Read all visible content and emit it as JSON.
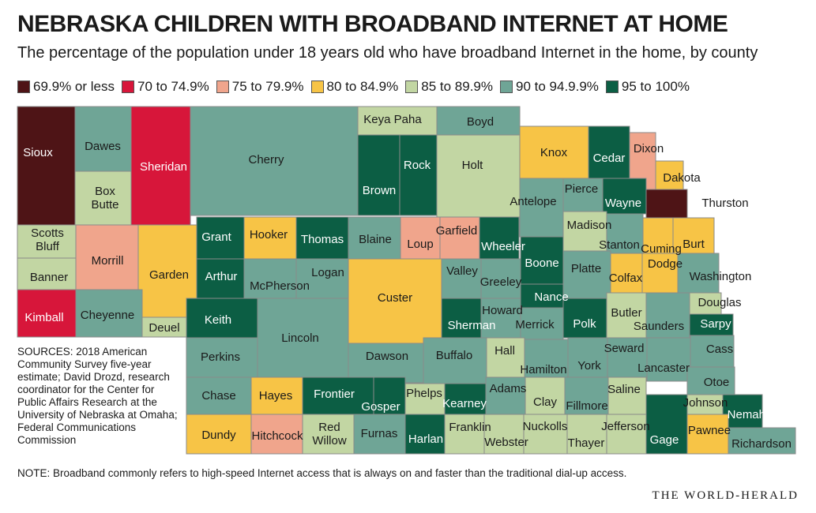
{
  "title": "NEBRASKA CHILDREN WITH BROADBAND INTERNET AT HOME",
  "subtitle": "The percentage of the population under 18 years old who have broadband Internet in the home, by county",
  "colors": {
    "c1": "#4e1416",
    "c2": "#d7163a",
    "c3": "#f0a58c",
    "c4": "#f7c446",
    "c5": "#c2d6a3",
    "c6": "#6fa596",
    "c7": "#0c5e44"
  },
  "legend": [
    {
      "key": "c1",
      "label": "69.9% or less"
    },
    {
      "key": "c2",
      "label": "70 to 74.9%"
    },
    {
      "key": "c3",
      "label": "75 to 79.9%"
    },
    {
      "key": "c4",
      "label": "80 to 84.9%"
    },
    {
      "key": "c5",
      "label": "85 to 89.9%"
    },
    {
      "key": "c6",
      "label": "90 to 94.9.9%"
    },
    {
      "key": "c7",
      "label": "95 to 100%"
    }
  ],
  "counties": [
    {
      "name": "Sioux",
      "cls": "c1"
    },
    {
      "name": "Dawes",
      "cls": "c6"
    },
    {
      "name": "Sheridan",
      "cls": "c2"
    },
    {
      "name": "Cherry",
      "cls": "c6"
    },
    {
      "name": "Keya Paha",
      "cls": "c5"
    },
    {
      "name": "Boyd",
      "cls": "c6"
    },
    {
      "name": "Brown",
      "cls": "c7"
    },
    {
      "name": "Rock",
      "cls": "c7"
    },
    {
      "name": "Holt",
      "cls": "c5"
    },
    {
      "name": "Knox",
      "cls": "c4"
    },
    {
      "name": "Cedar",
      "cls": "c7"
    },
    {
      "name": "Dixon",
      "cls": "c3"
    },
    {
      "name": "Dakota",
      "cls": "c4"
    },
    {
      "name": "Thurston",
      "cls": "c1"
    },
    {
      "name": "Box Butte",
      "cls": "c5"
    },
    {
      "name": "Scotts Bluff",
      "cls": "c5"
    },
    {
      "name": "Morrill",
      "cls": "c3"
    },
    {
      "name": "Garden",
      "cls": "c4"
    },
    {
      "name": "Grant",
      "cls": "c7"
    },
    {
      "name": "Hooker",
      "cls": "c4"
    },
    {
      "name": "Thomas",
      "cls": "c7"
    },
    {
      "name": "Blaine",
      "cls": "c6"
    },
    {
      "name": "Loup",
      "cls": "c3"
    },
    {
      "name": "Garfield",
      "cls": "c3"
    },
    {
      "name": "Wheeler",
      "cls": "c7"
    },
    {
      "name": "Antelope",
      "cls": "c6"
    },
    {
      "name": "Pierce",
      "cls": "c6"
    },
    {
      "name": "Wayne",
      "cls": "c7"
    },
    {
      "name": "Madison",
      "cls": "c5"
    },
    {
      "name": "Stanton",
      "cls": "c6"
    },
    {
      "name": "Cuming",
      "cls": "c4"
    },
    {
      "name": "Burt",
      "cls": "c4"
    },
    {
      "name": "Banner",
      "cls": "c5"
    },
    {
      "name": "Arthur",
      "cls": "c7"
    },
    {
      "name": "McPherson",
      "cls": "c6"
    },
    {
      "name": "Logan",
      "cls": "c6"
    },
    {
      "name": "Custer",
      "cls": "c4"
    },
    {
      "name": "Valley",
      "cls": "c6"
    },
    {
      "name": "Greeley",
      "cls": "c6"
    },
    {
      "name": "Boone",
      "cls": "c7"
    },
    {
      "name": "Platte",
      "cls": "c6"
    },
    {
      "name": "Colfax",
      "cls": "c4"
    },
    {
      "name": "Dodge",
      "cls": "c4"
    },
    {
      "name": "Washington",
      "cls": "c6"
    },
    {
      "name": "Kimball",
      "cls": "c2"
    },
    {
      "name": "Cheyenne",
      "cls": "c6"
    },
    {
      "name": "Deuel",
      "cls": "c5"
    },
    {
      "name": "Keith",
      "cls": "c7"
    },
    {
      "name": "Lincoln",
      "cls": "c6"
    },
    {
      "name": "Sherman",
      "cls": "c7"
    },
    {
      "name": "Howard",
      "cls": "c6"
    },
    {
      "name": "Nance",
      "cls": "c7"
    },
    {
      "name": "Merrick",
      "cls": "c6"
    },
    {
      "name": "Polk",
      "cls": "c7"
    },
    {
      "name": "Butler",
      "cls": "c5"
    },
    {
      "name": "Saunders",
      "cls": "c6"
    },
    {
      "name": "Douglas",
      "cls": "c5"
    },
    {
      "name": "Sarpy",
      "cls": "c7"
    },
    {
      "name": "Perkins",
      "cls": "c6"
    },
    {
      "name": "Dawson",
      "cls": "c6"
    },
    {
      "name": "Buffalo",
      "cls": "c6"
    },
    {
      "name": "Hall",
      "cls": "c5"
    },
    {
      "name": "Hamilton",
      "cls": "c6"
    },
    {
      "name": "York",
      "cls": "c6"
    },
    {
      "name": "Seward",
      "cls": "c6"
    },
    {
      "name": "Lancaster",
      "cls": "c6"
    },
    {
      "name": "Cass",
      "cls": "c6"
    },
    {
      "name": "Chase",
      "cls": "c6"
    },
    {
      "name": "Hayes",
      "cls": "c4"
    },
    {
      "name": "Frontier",
      "cls": "c7"
    },
    {
      "name": "Gosper",
      "cls": "c7"
    },
    {
      "name": "Phelps",
      "cls": "c5"
    },
    {
      "name": "Kearney",
      "cls": "c7"
    },
    {
      "name": "Adams",
      "cls": "c6"
    },
    {
      "name": "Clay",
      "cls": "c5"
    },
    {
      "name": "Fillmore",
      "cls": "c6"
    },
    {
      "name": "Saline",
      "cls": "c5"
    },
    {
      "name": "Otoe",
      "cls": "c6"
    },
    {
      "name": "Johnson",
      "cls": "c5"
    },
    {
      "name": "Nemaha",
      "cls": "c7"
    },
    {
      "name": "Dundy",
      "cls": "c4"
    },
    {
      "name": "Hitchcock",
      "cls": "c3"
    },
    {
      "name": "Red Willow",
      "cls": "c5"
    },
    {
      "name": "Furnas",
      "cls": "c6"
    },
    {
      "name": "Harlan",
      "cls": "c7"
    },
    {
      "name": "Franklin",
      "cls": "c5"
    },
    {
      "name": "Webster",
      "cls": "c5"
    },
    {
      "name": "Nuckolls",
      "cls": "c5"
    },
    {
      "name": "Thayer",
      "cls": "c5"
    },
    {
      "name": "Jefferson",
      "cls": "c5"
    },
    {
      "name": "Gage",
      "cls": "c7"
    },
    {
      "name": "Pawnee",
      "cls": "c4"
    },
    {
      "name": "Richardson",
      "cls": "c6"
    }
  ],
  "sources": "SOURCES: 2018 American Community Survey five-year estimate; David Drozd, research coordinator for the Center for Public Affairs Research at the University of Nebraska at Omaha; Federal Communications Commission",
  "note": "NOTE: Broadband commonly refers to high-speed Internet access that is always on and faster than the traditional dial-up access.",
  "brand": "THE WORLD-HERALD"
}
